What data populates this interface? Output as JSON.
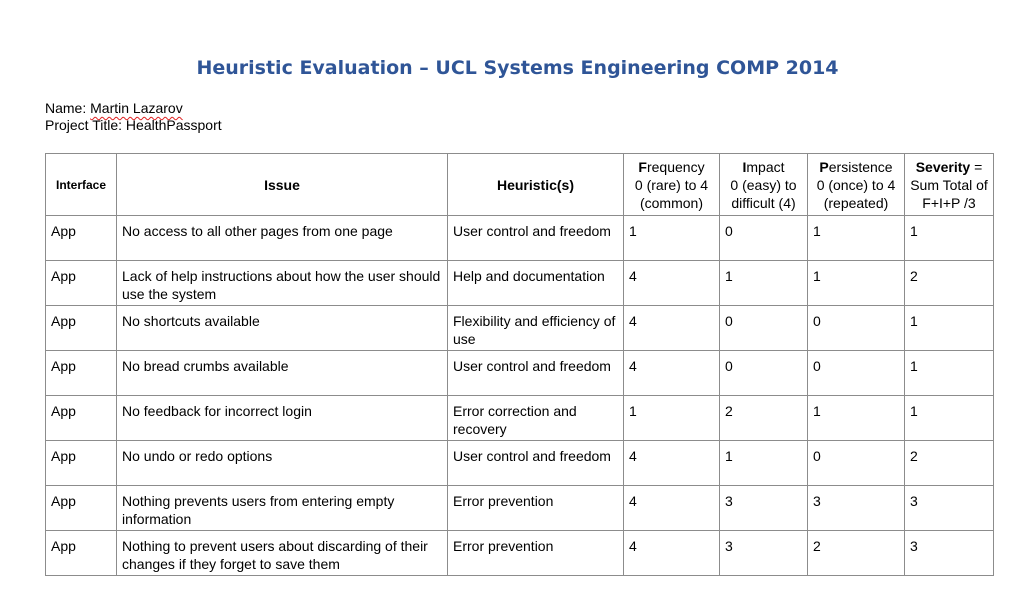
{
  "title": "Heuristic Evaluation – UCL Systems Engineering COMP 2014",
  "meta": {
    "name_label": "Name: ",
    "name_value": "Martin Lazarov",
    "project_label": "Project Title: ",
    "project_value": "HealthPassport"
  },
  "colors": {
    "title": "#2f5597",
    "table_border": "#8c8c8c",
    "spellcheck_underline": "#e02020"
  },
  "table": {
    "headers": {
      "interface": "Interface",
      "issue": "Issue",
      "heuristic": "Heuristic(s)",
      "frequency_initial": "F",
      "frequency_rest": "requency",
      "frequency_scale": "0 (rare)  to 4 (common)",
      "impact_initial": "I",
      "impact_rest": "mpact",
      "impact_scale": "0 (easy) to difficult (4)",
      "persistence_initial": "P",
      "persistence_rest": "ersistence",
      "persistence_scale": "0 (once) to 4 (repeated)",
      "severity_bold": "Severity",
      "severity_rest": " = Sum Total of F+I+P /3"
    },
    "rows": [
      {
        "interface": "App",
        "issue": "No access to all other pages from one page",
        "heuristic": "User control and freedom",
        "frequency": "1",
        "impact": "0",
        "persistence": "1",
        "severity": "1"
      },
      {
        "interface": "App",
        "issue": "Lack of help instructions about how the user should use the system",
        "heuristic": "Help and documentation",
        "frequency": "4",
        "impact": "1",
        "persistence": "1",
        "severity": "2"
      },
      {
        "interface": "App",
        "issue": "No shortcuts available",
        "heuristic": "Flexibility and efficiency of use",
        "frequency": "4",
        "impact": "0",
        "persistence": "0",
        "severity": "1"
      },
      {
        "interface": "App",
        "issue": "No bread crumbs available",
        "heuristic": "User control and freedom",
        "frequency": "4",
        "impact": "0",
        "persistence": "0",
        "severity": "1"
      },
      {
        "interface": "App",
        "issue": "No feedback for incorrect login",
        "heuristic": "Error correction and recovery",
        "frequency": "1",
        "impact": "2",
        "persistence": "1",
        "severity": "1"
      },
      {
        "interface": "App",
        "issue": "No undo or redo options",
        "heuristic": "User control and freedom",
        "frequency": "4",
        "impact": "1",
        "persistence": "0",
        "severity": "2"
      },
      {
        "interface": "App",
        "issue": "Nothing prevents users from entering empty information",
        "heuristic": "Error prevention",
        "frequency": "4",
        "impact": "3",
        "persistence": "3",
        "severity": "3"
      },
      {
        "interface": "App",
        "issue": "Nothing to prevent users about discarding of their changes if they forget to save them",
        "heuristic": "Error prevention",
        "frequency": "4",
        "impact": "3",
        "persistence": "2",
        "severity": "3"
      }
    ]
  }
}
